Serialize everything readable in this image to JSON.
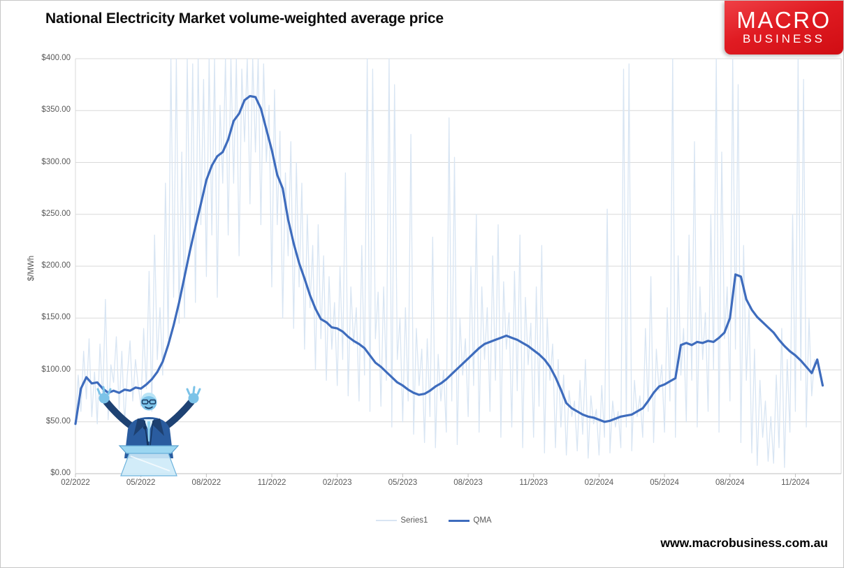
{
  "page": {
    "title": "National Electricity Market volume-weighted average price",
    "website": "www.macrobusiness.com.au",
    "logo": {
      "line1": "MACRO",
      "line2": "BUSINESS",
      "bg_color": "#dd1118",
      "text_color": "#ffffff"
    },
    "overlay_image": "blue duotone photo of a politician with arms outstretched behind a clear lectern with microphone"
  },
  "chart_data": {
    "type": "line",
    "title": "National Electricity Market volume-weighted average price",
    "xlabel": "",
    "ylabel": "$/MWh",
    "ylim": [
      0,
      400
    ],
    "grid": "horizontal-only",
    "legend_position": "bottom-center",
    "axis_text_color": "#595959",
    "gridline_color": "#d9d9d9",
    "axis_line_color": "#bfbfbf",
    "y_ticks": [
      {
        "value": 0,
        "label": "$0.00"
      },
      {
        "value": 50,
        "label": "$50.00"
      },
      {
        "value": 100,
        "label": "$100.00"
      },
      {
        "value": 150,
        "label": "$150.00"
      },
      {
        "value": 200,
        "label": "$200.00"
      },
      {
        "value": 250,
        "label": "$250.00"
      },
      {
        "value": 300,
        "label": "$300.00"
      },
      {
        "value": 350,
        "label": "$350.00"
      },
      {
        "value": 400,
        "label": "$400.00"
      }
    ],
    "x_ticks": [
      {
        "month_index": 0,
        "label": "02/2022"
      },
      {
        "month_index": 3,
        "label": "05/2022"
      },
      {
        "month_index": 6,
        "label": "08/2022"
      },
      {
        "month_index": 9,
        "label": "11/2022"
      },
      {
        "month_index": 12,
        "label": "02/2023"
      },
      {
        "month_index": 15,
        "label": "05/2023"
      },
      {
        "month_index": 18,
        "label": "08/2023"
      },
      {
        "month_index": 21,
        "label": "11/2023"
      },
      {
        "month_index": 24,
        "label": "02/2024"
      },
      {
        "month_index": 27,
        "label": "05/2024"
      },
      {
        "month_index": 30,
        "label": "08/2024"
      },
      {
        "month_index": 33,
        "label": "11/2024"
      }
    ],
    "x_months_span": 35.1,
    "x_start_label": "02/2022",
    "series": [
      {
        "name": "Series1",
        "color": "#d8e5f3",
        "stroke_width": 1.3,
        "start_month": 0,
        "step_months": 0.125,
        "unit": "$/MWh daily volume-weighted price, clipped at 400",
        "values": [
          45,
          95,
          60,
          118,
          72,
          130,
          55,
          98,
          48,
          125,
          70,
          168,
          52,
          105,
          88,
          132,
          62,
          118,
          48,
          95,
          128,
          70,
          110,
          85,
          65,
          140,
          82,
          195,
          60,
          230,
          110,
          160,
          95,
          280,
          130,
          400,
          170,
          400,
          145,
          310,
          150,
          400,
          210,
          395,
          165,
          400,
          240,
          380,
          190,
          400,
          230,
          400,
          170,
          355,
          280,
          400,
          230,
          400,
          280,
          400,
          210,
          390,
          320,
          400,
          260,
          400,
          310,
          400,
          240,
          395,
          300,
          355,
          180,
          370,
          240,
          330,
          150,
          290,
          210,
          320,
          140,
          300,
          180,
          280,
          120,
          250,
          160,
          220,
          100,
          240,
          130,
          210,
          90,
          190,
          120,
          165,
          85,
          200,
          110,
          290,
          75,
          180,
          125,
          160,
          70,
          220,
          95,
          400,
          60,
          390,
          130,
          175,
          65,
          180,
          90,
          400,
          45,
          375,
          110,
          150,
          50,
          160,
          70,
          327,
          38,
          140,
          85,
          120,
          30,
          130,
          55,
          228,
          25,
          115,
          70,
          100,
          40,
          343,
          70,
          305,
          28,
          150,
          95,
          130,
          55,
          200,
          85,
          250,
          40,
          180,
          110,
          160,
          60,
          210,
          90,
          240,
          35,
          185,
          120,
          155,
          45,
          195,
          80,
          230,
          25,
          170,
          105,
          145,
          35,
          180,
          65,
          220,
          20,
          150,
          90,
          125,
          25,
          110,
          45,
          95,
          18,
          80,
          55,
          70,
          22,
          90,
          38,
          110,
          15,
          75,
          48,
          62,
          18,
          85,
          35,
          255,
          20,
          70,
          45,
          60,
          25,
          390,
          45,
          395,
          22,
          90,
          55,
          75,
          35,
          140,
          60,
          190,
          30,
          120,
          80,
          105,
          40,
          160,
          70,
          400,
          35,
          210,
          95,
          140,
          50,
          230,
          90,
          320,
          45,
          180,
          110,
          155,
          60,
          250,
          100,
          400,
          40,
          310,
          130,
          180,
          70,
          400,
          120,
          375,
          30,
          220,
          90,
          160,
          20,
          120,
          8,
          90,
          35,
          70,
          12,
          55,
          10,
          95,
          25,
          140,
          6,
          110,
          40,
          250,
          60,
          400,
          90,
          380,
          45,
          150,
          75,
          110
        ]
      },
      {
        "name": "QMA",
        "color": "#3e6cbd",
        "stroke_width": 3.2,
        "start_month": 0,
        "step_months": 0.25,
        "unit": "$/MWh quarterly moving average",
        "values": [
          48,
          82,
          93,
          87,
          88,
          82,
          78,
          80,
          78,
          81,
          80,
          83,
          82,
          86,
          91,
          98,
          108,
          124,
          143,
          165,
          190,
          215,
          238,
          260,
          283,
          297,
          306,
          310,
          322,
          340,
          347,
          360,
          364,
          363,
          352,
          332,
          312,
          288,
          275,
          245,
          222,
          203,
          188,
          172,
          159,
          149,
          146,
          141,
          140,
          137,
          132,
          128,
          125,
          121,
          114,
          107,
          103,
          98,
          93,
          88,
          85,
          81,
          78,
          76,
          77,
          80,
          84,
          87,
          91,
          96,
          101,
          106,
          111,
          116,
          121,
          125,
          127,
          129,
          131,
          133,
          131,
          129,
          126,
          123,
          119,
          115,
          110,
          103,
          93,
          81,
          68,
          63,
          60,
          57,
          55,
          54,
          52,
          50,
          51,
          53,
          55,
          56,
          57,
          60,
          63,
          70,
          78,
          84,
          86,
          89,
          92,
          124,
          126,
          124,
          127,
          126,
          128,
          127,
          131,
          136,
          150,
          192,
          190,
          168,
          158,
          151,
          146,
          141,
          136,
          129,
          123,
          118,
          114,
          109,
          103,
          97,
          110,
          85
        ]
      }
    ]
  }
}
